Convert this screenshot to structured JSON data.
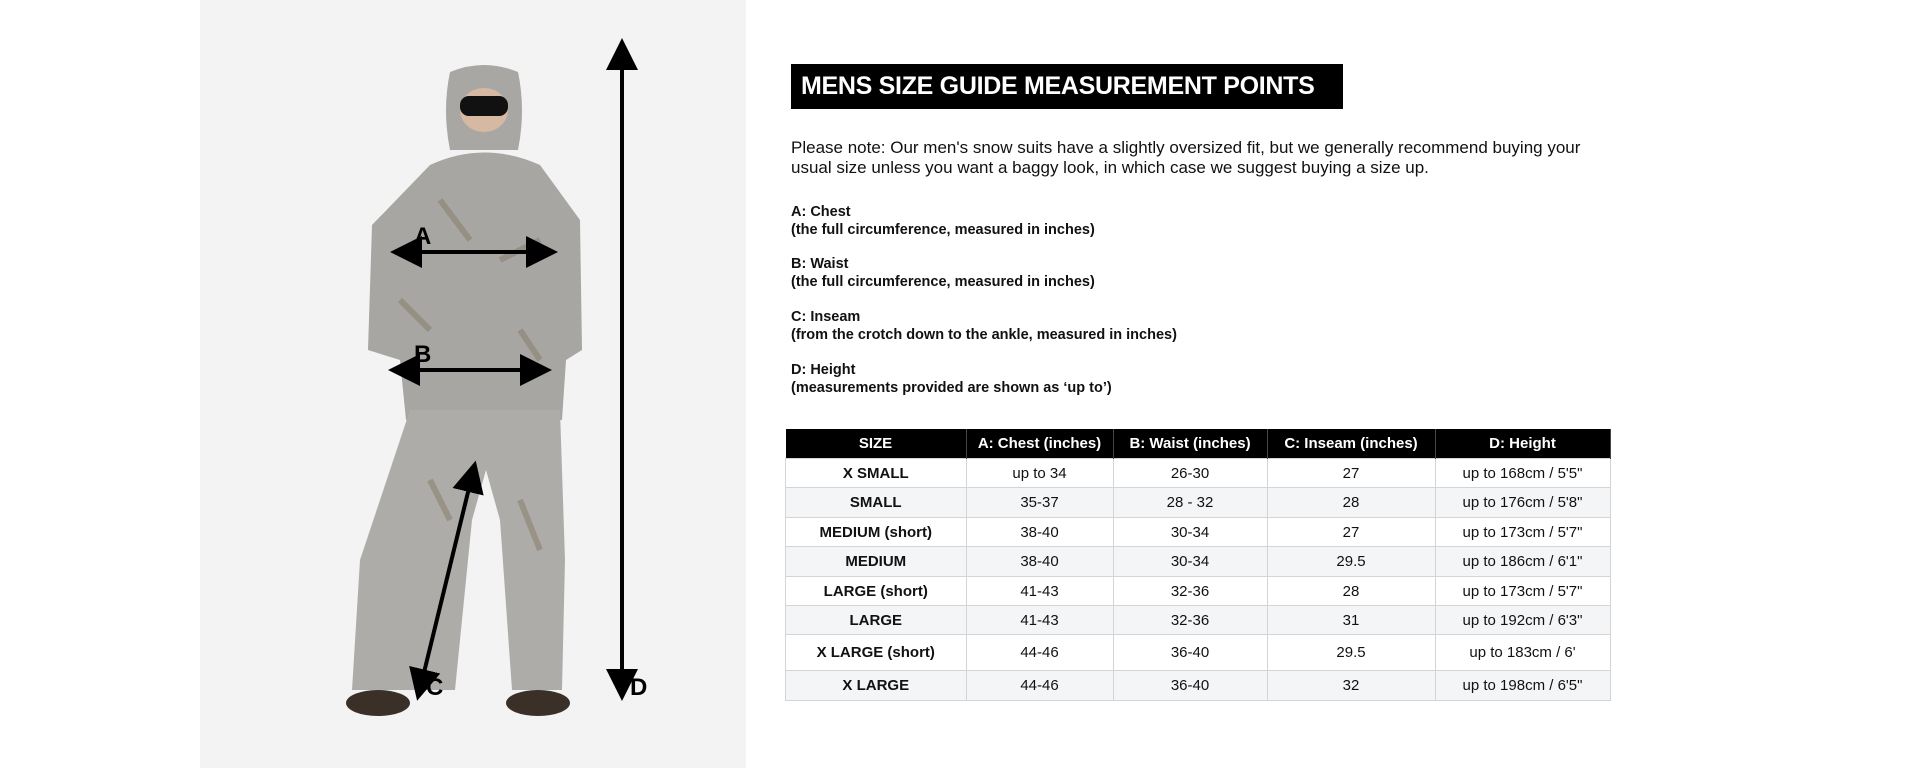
{
  "photo": {
    "labels": {
      "a": "A",
      "b": "B",
      "c": "C",
      "d": "D"
    }
  },
  "title": "MENS SIZE GUIDE MEASUREMENT POINTS",
  "note": "Please note: Our men's snow suits have a slightly oversized fit, but we generally recommend buying your usual size unless you want a baggy look, in which case we suggest buying a size up.",
  "definitions": [
    {
      "label": "A: Chest",
      "desc": "(the full circumference, measured in inches)"
    },
    {
      "label": "B: Waist",
      "desc": "(the full circumference, measured in inches)"
    },
    {
      "label": "C: Inseam",
      "desc": "(from the crotch down to the ankle, measured in inches)"
    },
    {
      "label": "D: Height",
      "desc": "(measurements provided are shown as ‘up to’)"
    }
  ],
  "table": {
    "headers": [
      "SIZE",
      "A: Chest (inches)",
      "B: Waist (inches)",
      "C: Inseam (inches)",
      "D: Height"
    ],
    "rows": [
      [
        "X SMALL",
        "up to 34",
        "26-30",
        "27",
        "up to 168cm / 5'5\""
      ],
      [
        "SMALL",
        "35-37",
        "28 - 32",
        "28",
        "up to 176cm / 5'8\""
      ],
      [
        "MEDIUM (short)",
        "38-40",
        "30-34",
        "27",
        "up to 173cm / 5'7\""
      ],
      [
        "MEDIUM",
        "38-40",
        "30-34",
        "29.5",
        "up to 186cm / 6'1\""
      ],
      [
        "LARGE (short)",
        "41-43",
        "32-36",
        "28",
        "up to 173cm / 5'7\""
      ],
      [
        "LARGE",
        "41-43",
        "32-36",
        "31",
        "up to 192cm / 6'3\""
      ],
      [
        "X LARGE (short)",
        "44-46",
        "36-40",
        "29.5",
        "up to 183cm / 6'"
      ],
      [
        "X LARGE",
        "44-46",
        "36-40",
        "32",
        "up to 198cm / 6'5\""
      ]
    ]
  }
}
